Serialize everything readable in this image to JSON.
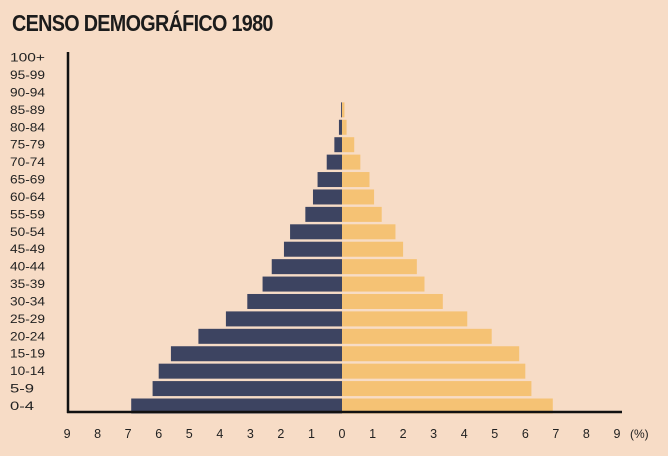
{
  "chart_data": {
    "type": "bar",
    "orientation": "horizontal",
    "title": "CENSO DEMOGRÁFICO 1980",
    "categories": [
      "0-4",
      "5-9",
      "10-14",
      "15-19",
      "20-24",
      "25-29",
      "30-34",
      "35-39",
      "40-44",
      "45-49",
      "50-54",
      "55-59",
      "60-64",
      "65-69",
      "70-74",
      "75-79",
      "80-84",
      "85-89",
      "90-94",
      "95-99",
      "100+"
    ],
    "series": [
      {
        "side": "left",
        "color": "#3d4461",
        "values": [
          6.9,
          6.2,
          6.0,
          5.6,
          4.7,
          3.8,
          3.1,
          2.6,
          2.3,
          1.9,
          1.7,
          1.2,
          0.95,
          0.8,
          0.5,
          0.25,
          0.1,
          0.03,
          0,
          0,
          0
        ]
      },
      {
        "side": "right",
        "color": "#f5c274",
        "values": [
          6.9,
          6.2,
          6.0,
          5.8,
          4.9,
          4.1,
          3.3,
          2.7,
          2.45,
          2.0,
          1.75,
          1.3,
          1.05,
          0.9,
          0.6,
          0.4,
          0.15,
          0.08,
          0,
          0,
          0
        ]
      }
    ],
    "xticks": [
      "9",
      "8",
      "7",
      "6",
      "5",
      "4",
      "3",
      "2",
      "1",
      "0",
      "1",
      "2",
      "3",
      "4",
      "5",
      "6",
      "7",
      "8",
      "9"
    ],
    "xunit": "(%)",
    "xlim": [
      -9,
      9
    ],
    "grid": false,
    "legend": "none"
  }
}
